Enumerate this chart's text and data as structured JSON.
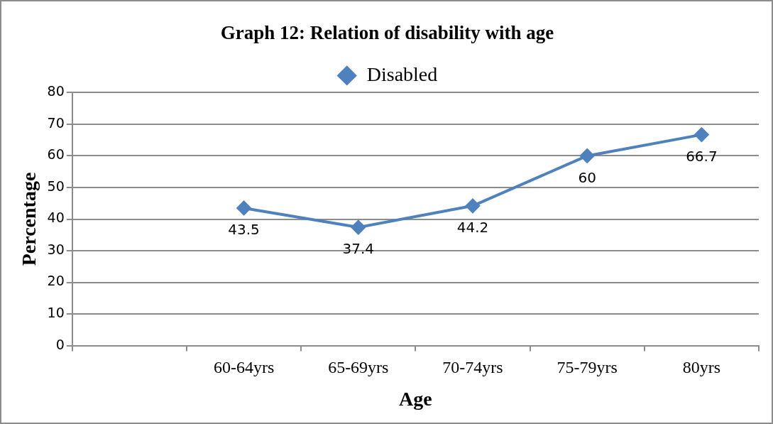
{
  "chart_data": {
    "type": "line",
    "title": "Graph 12: Relation of disability with age",
    "xlabel": "Age",
    "ylabel": "Percentage",
    "categories": [
      null,
      "60-64yrs",
      "65-69yrs",
      "70-74yrs",
      "75-79yrs",
      "80yrs"
    ],
    "series": [
      {
        "name": "Disabled",
        "color": "#4f81bd",
        "values": [
          null,
          43.5,
          37.4,
          44.2,
          60,
          66.7
        ]
      }
    ],
    "ylim": [
      0,
      80
    ],
    "yticks": [
      0,
      10,
      20,
      30,
      40,
      50,
      60,
      70,
      80
    ],
    "grid": "y",
    "legend": "top",
    "marker": "diamond",
    "line_style": "solid",
    "data_labels": true
  }
}
